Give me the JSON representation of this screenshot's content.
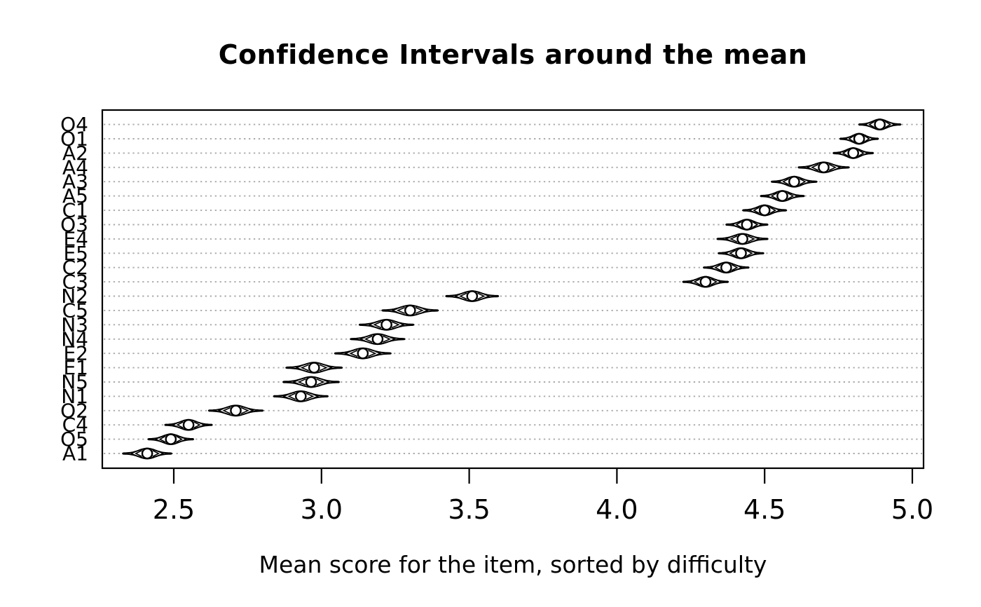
{
  "title": "Confidence Intervals around the mean",
  "xlabel": "Mean score for the item, sorted by difficulty",
  "chart_data": {
    "type": "scatter",
    "variant": "cat-eye-confidence-interval-dot-chart",
    "title": "Confidence Intervals around the mean",
    "xlabel": "Mean score for the item, sorted by difficulty",
    "ylabel": "",
    "xlim": [
      2.26,
      5.03
    ],
    "x_ticks": [
      2.5,
      3.0,
      3.5,
      4.0,
      4.5,
      5.0
    ],
    "grid": "dotted-horizontal",
    "legend": "none",
    "ci_multiplier_line": 3.05,
    "ci_multiplier_eye": 1.96,
    "colors": {
      "marker_stroke": "#000000",
      "marker_fill": "#ffffff",
      "grid": "#ababab",
      "text": "#000000",
      "background": "#ffffff"
    },
    "items": [
      {
        "label": "O4",
        "mean": 4.89,
        "se": 0.023
      },
      {
        "label": "O1",
        "mean": 4.82,
        "se": 0.021
      },
      {
        "label": "A2",
        "mean": 4.8,
        "se": 0.022
      },
      {
        "label": "A4",
        "mean": 4.7,
        "se": 0.028
      },
      {
        "label": "A3",
        "mean": 4.6,
        "se": 0.025
      },
      {
        "label": "A5",
        "mean": 4.56,
        "se": 0.024
      },
      {
        "label": "C1",
        "mean": 4.5,
        "se": 0.024
      },
      {
        "label": "O3",
        "mean": 4.44,
        "se": 0.023
      },
      {
        "label": "E4",
        "mean": 4.425,
        "se": 0.028
      },
      {
        "label": "E5",
        "mean": 4.42,
        "se": 0.025
      },
      {
        "label": "C2",
        "mean": 4.37,
        "se": 0.025
      },
      {
        "label": "C3",
        "mean": 4.3,
        "se": 0.025
      },
      {
        "label": "N2",
        "mean": 3.51,
        "se": 0.029
      },
      {
        "label": "C5",
        "mean": 3.3,
        "se": 0.031
      },
      {
        "label": "N3",
        "mean": 3.22,
        "se": 0.03
      },
      {
        "label": "N4",
        "mean": 3.19,
        "se": 0.03
      },
      {
        "label": "E2",
        "mean": 3.14,
        "se": 0.031
      },
      {
        "label": "E1",
        "mean": 2.975,
        "se": 0.031
      },
      {
        "label": "N5",
        "mean": 2.965,
        "se": 0.031
      },
      {
        "label": "N1",
        "mean": 2.93,
        "se": 0.03
      },
      {
        "label": "O2",
        "mean": 2.71,
        "se": 0.03
      },
      {
        "label": "C4",
        "mean": 2.55,
        "se": 0.026
      },
      {
        "label": "O5",
        "mean": 2.49,
        "se": 0.025
      },
      {
        "label": "A1",
        "mean": 2.41,
        "se": 0.027
      }
    ]
  }
}
